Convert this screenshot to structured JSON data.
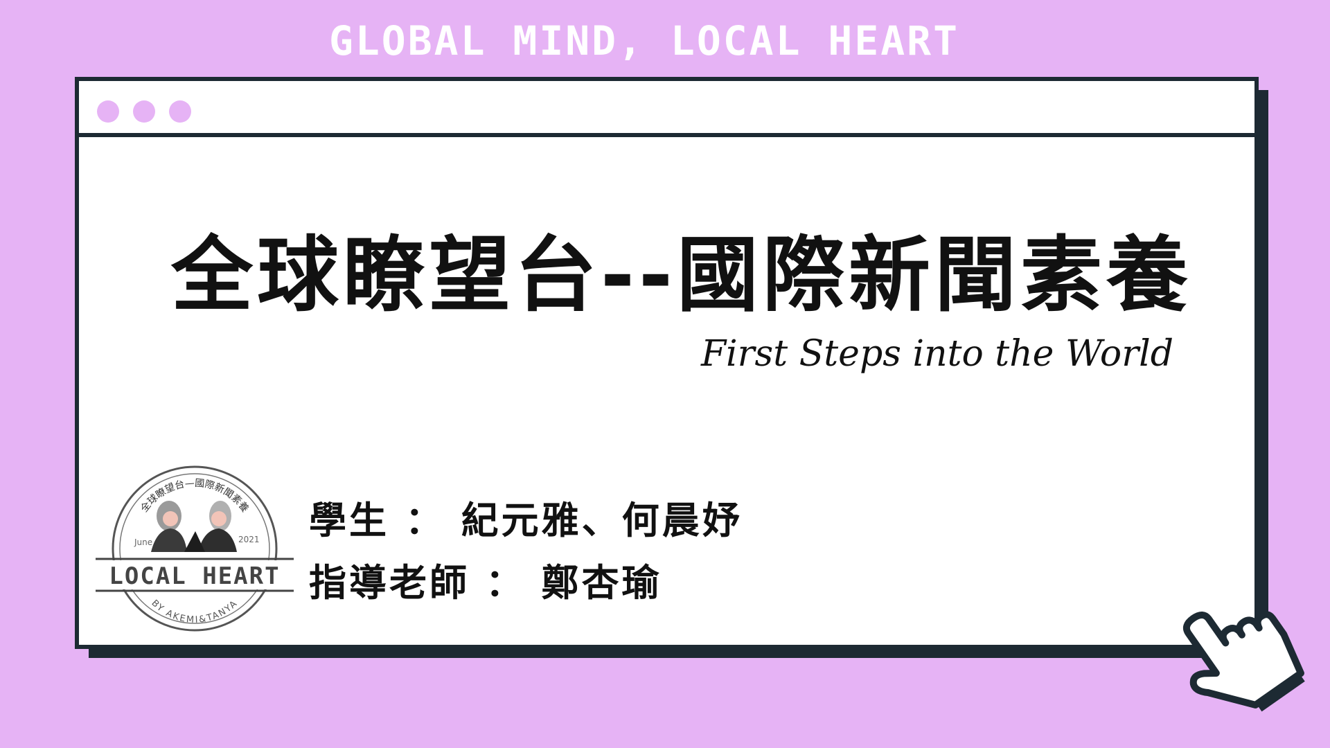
{
  "banner": {
    "text": "GLOBAL MIND, LOCAL HEART"
  },
  "window": {
    "dots": [
      "dot-1",
      "dot-2",
      "dot-3"
    ],
    "title": "全球瞭望台--國際新聞素養",
    "subtitle": "First Steps into the World"
  },
  "logo": {
    "arc_text": "全球瞭望台—國際新聞素養",
    "left_label": "June",
    "right_label": "2021",
    "name": "LOCAL HEART",
    "byline": "BY AKEMI&TANYA"
  },
  "credits": {
    "students_label": "學生",
    "students_names": "紀元雅、何晨妤",
    "teacher_label": "指導老師",
    "teacher_name": "鄭杏瑜",
    "separator": "："
  },
  "icons": {
    "cursor": "pointing-hand-cursor-icon"
  },
  "colors": {
    "background": "#e6b3f5",
    "frame": "#1d2a33",
    "window": "#ffffff",
    "text": "#111111"
  }
}
